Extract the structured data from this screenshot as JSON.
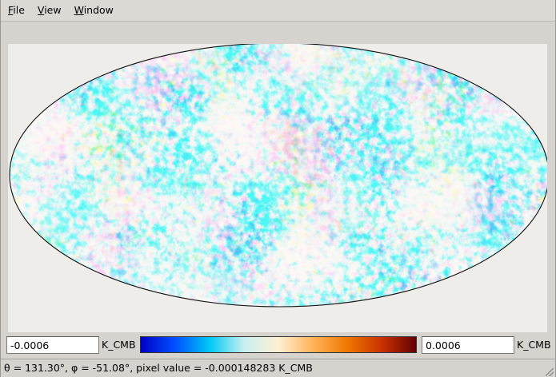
{
  "menu": {
    "items": [
      {
        "mnemonic": "F",
        "rest": "ile"
      },
      {
        "mnemonic": "V",
        "rest": "iew"
      },
      {
        "mnemonic": "W",
        "rest": "indow"
      }
    ]
  },
  "map": {
    "projection": "mollweide",
    "colors": {
      "background": "#efedea",
      "outline": "#111111",
      "cold": "#14a8e3",
      "neutral": "#f4efdc",
      "warm": "#f29d1a"
    }
  },
  "scale": {
    "min_value": "-0.0006",
    "min_unit": "K_CMB",
    "max_value": "0.0006",
    "max_unit": "K_CMB",
    "gradient": [
      "#0000c8",
      "#0050ff",
      "#00c8f5",
      "#c8f0f0",
      "#fff0d2",
      "#ffb45a",
      "#f07800",
      "#c83200",
      "#640000"
    ]
  },
  "status": {
    "text": "θ = 131.30°, φ = -51.08°, pixel value = -0.000148283 K_CMB"
  }
}
